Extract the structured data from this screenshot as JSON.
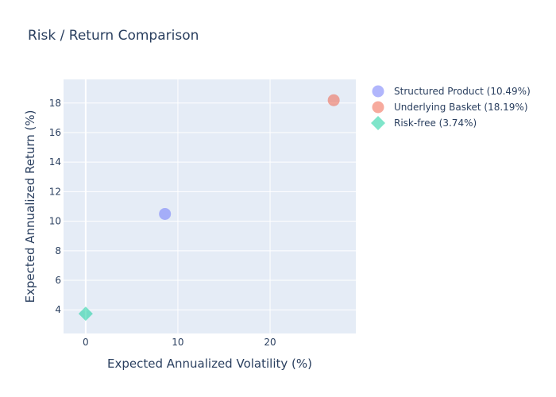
{
  "chart_data": {
    "type": "scatter",
    "title": "Risk / Return Comparison",
    "xlabel": "Expected Annualized Volatility (%)",
    "ylabel": "Expected Annualized Return (%)",
    "xlim": [
      -2.4,
      29.3
    ],
    "ylim": [
      2.4,
      19.6
    ],
    "xticks": [
      0,
      10,
      20
    ],
    "yticks": [
      4,
      6,
      8,
      10,
      12,
      14,
      16,
      18
    ],
    "grid": true,
    "legend_position": "right",
    "plot_bgcolor": "#e5ecf6",
    "series": [
      {
        "name": "Structured Product (10.49%)",
        "x": 8.6,
        "y": 10.49,
        "color": "#636efa",
        "marker": "circle"
      },
      {
        "name": "Underlying Basket (18.19%)",
        "x": 26.9,
        "y": 18.19,
        "color": "#ef553b",
        "marker": "circle"
      },
      {
        "name": "Risk-free (3.74%)",
        "x": 0,
        "y": 3.74,
        "color": "#00cc96",
        "marker": "diamond"
      }
    ]
  }
}
